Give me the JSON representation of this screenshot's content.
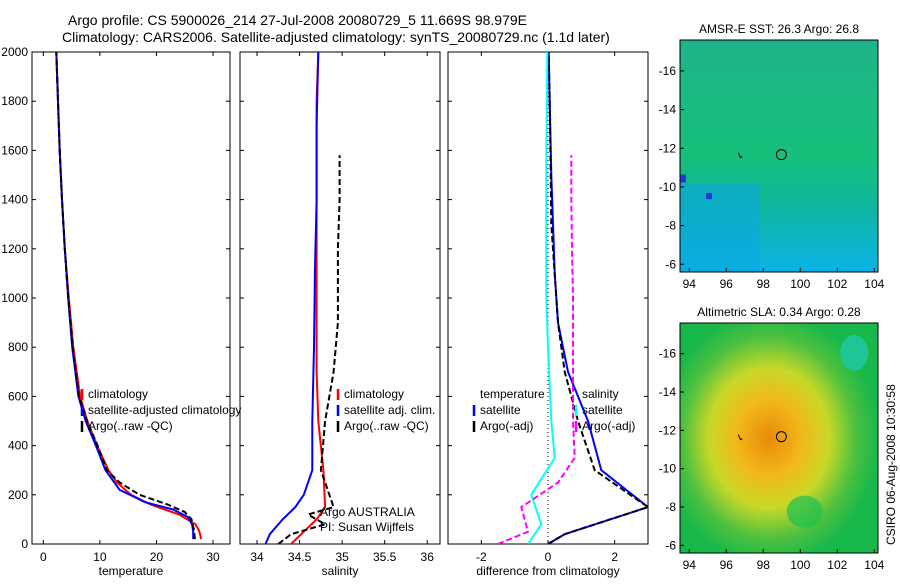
{
  "header": {
    "line1": "Argo profile: CS 5900026_214 27-Jul-2008 20080729_5 11.669S 98.979E",
    "line2": "Climatology: CARS2006. Satellite-adjusted climatology: synTS_20080729.nc (1.1d later)"
  },
  "side_label": "CSIRO 06-Aug-2008 10:30:58",
  "colors": {
    "red": "#ff0000",
    "blue": "#0000ff",
    "black": "#000000",
    "magenta": "#ff00ff",
    "cyan": "#00ffff"
  },
  "chart_data": [
    {
      "type": "line",
      "id": "temperature",
      "xlabel": "temperature",
      "ylabel": "",
      "xlim": [
        -2,
        33
      ],
      "ylim": [
        2000,
        0
      ],
      "xticks": [
        0,
        10,
        20,
        30
      ],
      "yticks": [
        0,
        200,
        400,
        600,
        800,
        1000,
        1200,
        1400,
        1600,
        1800,
        2000
      ],
      "legend": {
        "placement": "lower-center",
        "entries": [
          "climatology",
          "satellite-adjusted climatology",
          "Argo(..raw -QC)"
        ]
      },
      "series": [
        {
          "name": "climatology",
          "color": "red",
          "style": "solid",
          "x": [
            27.9,
            27.6,
            26.9,
            24,
            19,
            15.5,
            13,
            11.5,
            9.5,
            7.8,
            6.5,
            5.3,
            4.5,
            3.8,
            3.3,
            2.9,
            2.6,
            2.3
          ],
          "y": [
            20,
            50,
            80,
            120,
            160,
            200,
            250,
            300,
            400,
            500,
            600,
            800,
            1000,
            1200,
            1400,
            1600,
            1800,
            2000
          ]
        },
        {
          "name": "satellite-adjusted climatology",
          "color": "blue",
          "style": "solid",
          "x": [
            26.5,
            26.5,
            26.3,
            25.5,
            23,
            18,
            13.5,
            11,
            9.3,
            7.5,
            6.2,
            5.1,
            4.4,
            3.8,
            3.3,
            2.9,
            2.6,
            2.3
          ],
          "y": [
            20,
            50,
            80,
            110,
            140,
            170,
            220,
            300,
            400,
            500,
            600,
            800,
            1000,
            1200,
            1400,
            1600,
            1800,
            2000
          ]
        },
        {
          "name": "Argo(..raw -QC)",
          "color": "black",
          "style": "dashed",
          "x": [
            26.8,
            26.6,
            26.2,
            25,
            22,
            17,
            13.5,
            11.2,
            9.6,
            7.7,
            6.3,
            5.2,
            4.4,
            3.8,
            3.3,
            2.9,
            2.6,
            2.3
          ],
          "y": [
            20,
            60,
            100,
            130,
            160,
            200,
            250,
            300,
            400,
            500,
            600,
            800,
            1000,
            1200,
            1400,
            1600,
            1800,
            2000
          ]
        }
      ]
    },
    {
      "type": "line",
      "id": "salinity",
      "xlabel": "salinity",
      "xlim": [
        33.8,
        36.15
      ],
      "ylim": [
        2000,
        0
      ],
      "xticks": [
        34,
        34.5,
        35,
        35.5,
        36
      ],
      "legend": {
        "placement": "lower-right",
        "entries": [
          "climatology",
          "satellite adj. clim.",
          "Argo(..raw -QC)"
        ]
      },
      "annotation": [
        "Argo AUSTRALIA",
        "PI: Susan Wijffels"
      ],
      "series": [
        {
          "name": "climatology",
          "color": "red",
          "style": "solid",
          "x": [
            34.4,
            34.55,
            34.7,
            34.8,
            34.78,
            34.72,
            34.7,
            34.7,
            34.7,
            34.7,
            34.7,
            34.72
          ],
          "y": [
            0,
            50,
            100,
            150,
            300,
            500,
            700,
            1000,
            1200,
            1500,
            1800,
            2000
          ]
        },
        {
          "name": "satellite adj. clim.",
          "color": "blue",
          "style": "solid",
          "x": [
            34.1,
            34.15,
            34.3,
            34.45,
            34.55,
            34.65,
            34.65,
            34.67,
            34.68,
            34.7,
            34.7,
            34.72
          ],
          "y": [
            0,
            40,
            100,
            150,
            200,
            300,
            500,
            800,
            1100,
            1400,
            1700,
            2000
          ]
        },
        {
          "name": "Argo(..raw -QC)",
          "color": "black",
          "style": "dashed",
          "x": [
            34.25,
            34.4,
            34.8,
            34.6,
            34.9,
            34.75,
            34.8,
            34.9,
            34.95,
            34.95,
            34.97,
            34.97
          ],
          "y": [
            0,
            40,
            80,
            120,
            150,
            300,
            500,
            700,
            900,
            1200,
            1400,
            1580
          ]
        }
      ]
    },
    {
      "type": "line",
      "id": "difference",
      "xlabel": "difference from climatology",
      "xlim": [
        -3,
        3
      ],
      "ylim": [
        2000,
        0
      ],
      "xticks": [
        -2,
        0,
        2
      ],
      "legend": {
        "placement": "lower-center",
        "headers": [
          "temperature",
          "salinity"
        ],
        "entries": [
          "satellite",
          "Argo(-adj)",
          "satellite",
          "Argo(-adj)"
        ]
      },
      "series": [
        {
          "name": "temperature satellite",
          "color": "blue",
          "style": "solid",
          "x": [
            0,
            0.5,
            3,
            1.6,
            1.2,
            0.6,
            0.3,
            0.2,
            0.15,
            0.1,
            0.05,
            0.02
          ],
          "y": [
            0,
            40,
            150,
            300,
            500,
            700,
            900,
            1100,
            1300,
            1500,
            1800,
            2000
          ]
        },
        {
          "name": "temperature Argo(-adj)",
          "color": "black",
          "style": "dashed",
          "x": [
            0,
            0.5,
            3,
            1.4,
            0.9,
            0.5,
            0.3,
            0.2,
            0.1,
            0.08,
            0.05,
            0.02
          ],
          "y": [
            0,
            40,
            150,
            300,
            500,
            700,
            900,
            1100,
            1300,
            1500,
            1800,
            2000
          ]
        },
        {
          "name": "salinity satellite",
          "color": "cyan",
          "style": "solid",
          "x": [
            -0.6,
            -0.2,
            -0.5,
            0.2,
            0.1,
            0,
            -0.05,
            -0.05,
            -0.05,
            -0.05,
            -0.03,
            -0.02
          ],
          "y": [
            0,
            80,
            200,
            350,
            500,
            800,
            1000,
            1200,
            1400,
            1600,
            1800,
            2000
          ]
        },
        {
          "name": "salinity Argo(-adj)",
          "color": "magenta",
          "style": "dashed",
          "x": [
            -1.5,
            -0.6,
            -0.8,
            0.3,
            0.8,
            0.75,
            0.75,
            0.75,
            0.72,
            0.7,
            0.7
          ],
          "y": [
            0,
            50,
            150,
            250,
            350,
            500,
            800,
            1000,
            1200,
            1400,
            1580
          ]
        }
      ]
    },
    {
      "type": "heatmap",
      "id": "sst-map",
      "title": "AMSR-E SST: 26.3 Argo: 26.8",
      "xlim": [
        93.5,
        104.2
      ],
      "ylim": [
        -17.6,
        -5.6
      ],
      "xticks": [
        94,
        96,
        98,
        100,
        102,
        104
      ],
      "yticks": [
        -6,
        -8,
        -10,
        -12,
        -14,
        -16
      ],
      "marker": {
        "lon": 98.979,
        "lat": -11.669
      }
    },
    {
      "type": "heatmap",
      "id": "sla-map",
      "title": "Altimetric SLA: 0.34 Argo: 0.28",
      "xlim": [
        93.5,
        104.2
      ],
      "ylim": [
        -17.6,
        -5.6
      ],
      "xticks": [
        94,
        96,
        98,
        100,
        102,
        104
      ],
      "yticks": [
        -6,
        -8,
        -10,
        -12,
        -14,
        -16
      ],
      "marker": {
        "lon": 98.979,
        "lat": -11.669
      }
    }
  ]
}
